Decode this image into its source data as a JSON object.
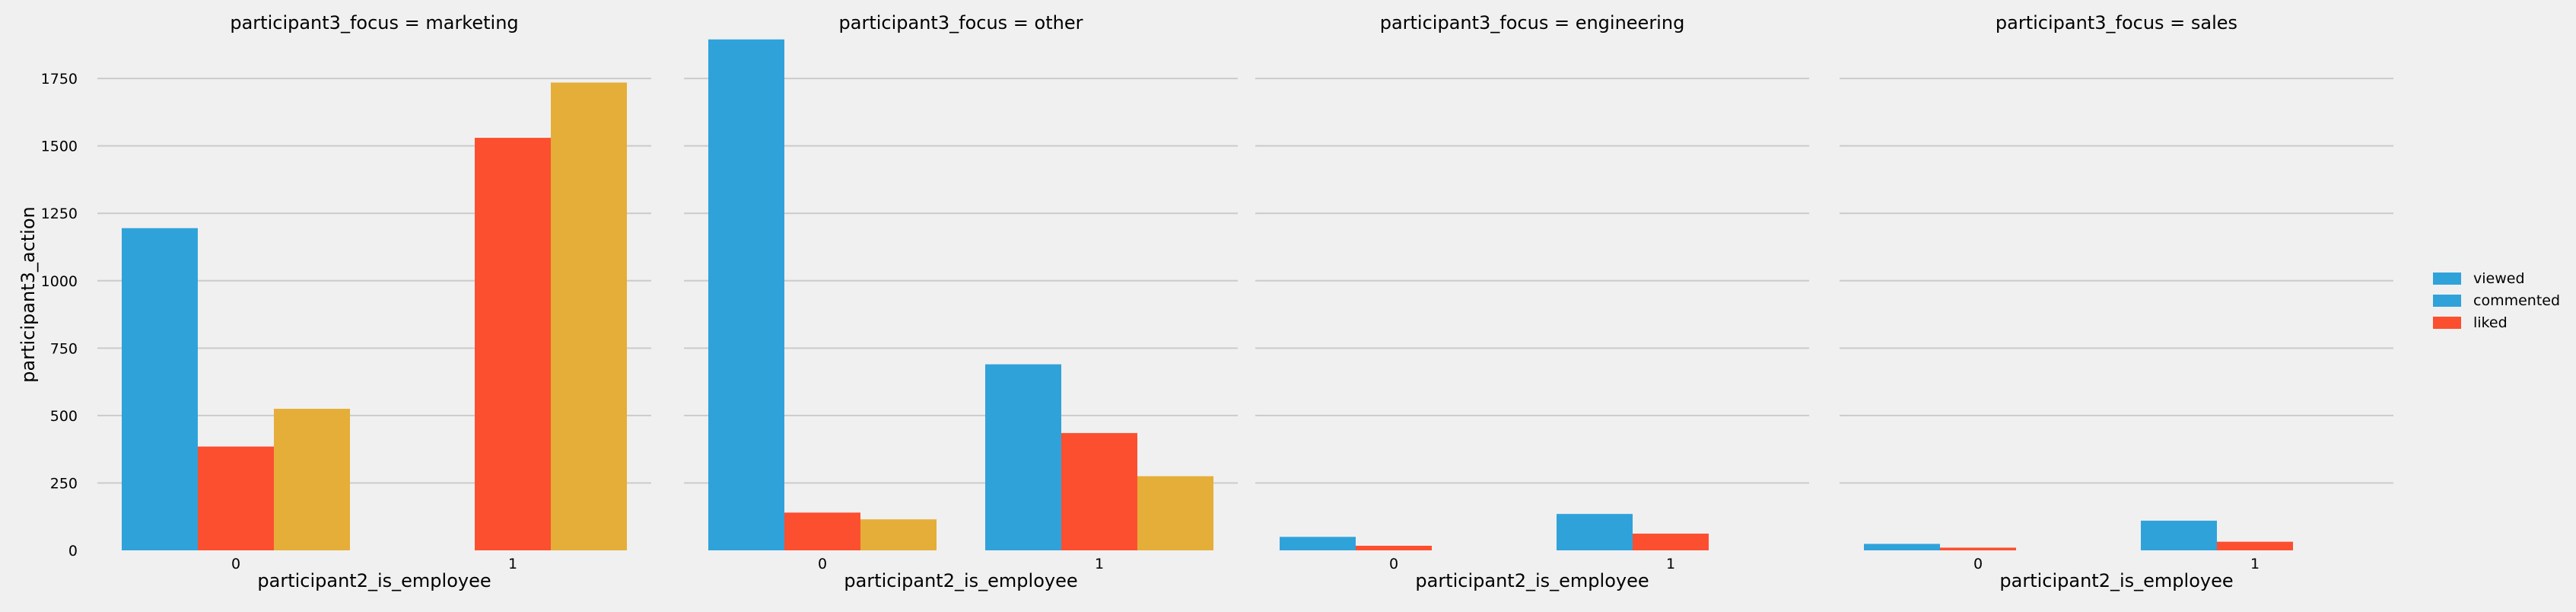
{
  "chart_data": {
    "type": "bar",
    "facet_variable": "participant3_focus",
    "facets": [
      {
        "title": "participant3_focus = marketing",
        "categories": [
          "0",
          "1"
        ],
        "series": [
          {
            "name": "viewed",
            "values": [
              1195,
              null
            ]
          },
          {
            "name": "liked",
            "values": [
              385,
              1530
            ]
          },
          {
            "name": "",
            "values": [
              525,
              1735
            ]
          }
        ]
      },
      {
        "title": "participant3_focus = other",
        "categories": [
          "0",
          "1"
        ],
        "series": [
          {
            "name": "viewed",
            "values": [
              1895,
              690
            ]
          },
          {
            "name": "liked",
            "values": [
              140,
              435
            ]
          },
          {
            "name": "",
            "values": [
              115,
              275
            ]
          }
        ]
      },
      {
        "title": "participant3_focus = engineering",
        "categories": [
          "0",
          "1"
        ],
        "series": [
          {
            "name": "viewed",
            "values": [
              50,
              135
            ]
          },
          {
            "name": "liked",
            "values": [
              17,
              62
            ]
          },
          {
            "name": "",
            "values": [
              null,
              null
            ]
          }
        ]
      },
      {
        "title": "participant3_focus = sales",
        "categories": [
          "0",
          "1"
        ],
        "series": [
          {
            "name": "viewed",
            "values": [
              24,
              110
            ]
          },
          {
            "name": "liked",
            "values": [
              10,
              32
            ]
          },
          {
            "name": "",
            "values": [
              null,
              null
            ]
          }
        ]
      }
    ],
    "xlabel": "participant2_is_employee",
    "ylabel": "participant3_action",
    "ylim": [
      0,
      1900
    ],
    "yticks": [
      0,
      250,
      500,
      750,
      1000,
      1250,
      1500,
      1750
    ],
    "grid": "horizontal",
    "legend": {
      "placement": "right",
      "entries": [
        {
          "label": "viewed",
          "color": "#30a2da"
        },
        {
          "label": "commented",
          "color": "#30a2da"
        },
        {
          "label": "liked",
          "color": "#fc4f30"
        }
      ]
    },
    "colors": [
      "#30a2da",
      "#fc4f30",
      "#e5ae38"
    ]
  }
}
